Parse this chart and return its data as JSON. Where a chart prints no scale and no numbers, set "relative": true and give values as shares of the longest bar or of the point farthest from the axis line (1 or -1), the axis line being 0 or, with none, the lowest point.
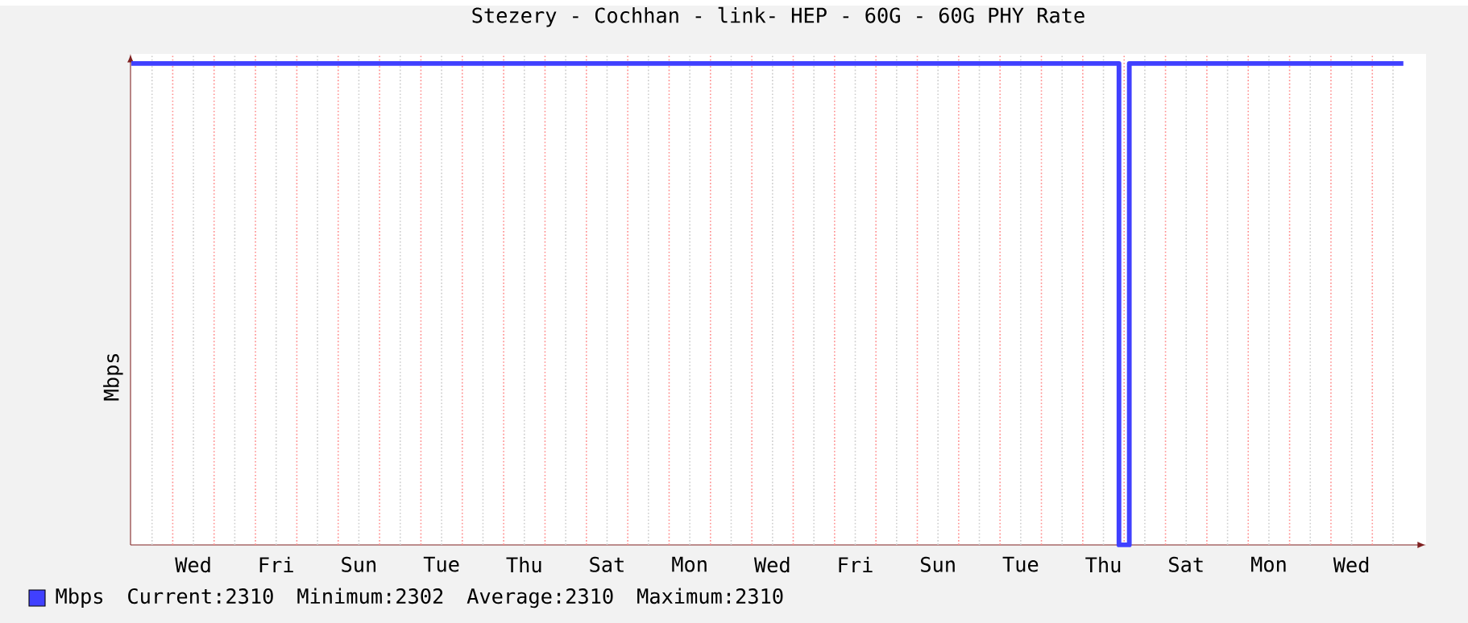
{
  "chart_data": {
    "type": "step",
    "title": "Stezery - Cochhan - link- HEP - 60G - 60G PHY Rate",
    "ylabel": "Mbps",
    "relative": true,
    "categories": [
      null,
      null,
      null,
      null,
      null,
      null,
      "Wed",
      null,
      null,
      null,
      null,
      null,
      null,
      null,
      "Fri",
      null,
      null,
      null,
      null,
      null,
      null,
      null,
      "Sun",
      null,
      null,
      null,
      null,
      null,
      null,
      null,
      "Tue",
      null,
      null,
      null,
      null,
      null,
      null,
      null,
      "Thu",
      null,
      null,
      null,
      null,
      null,
      null,
      null,
      "Sat",
      null,
      null,
      null,
      null,
      null,
      null,
      null,
      "Mon",
      null,
      null,
      null,
      null,
      null,
      null,
      null,
      "Wed",
      null,
      null,
      null,
      null,
      null,
      null,
      null,
      "Fri",
      null,
      null,
      null,
      null,
      null,
      null,
      null,
      "Sun",
      null,
      null,
      null,
      null,
      null,
      null,
      null,
      "Tue",
      null,
      null,
      null,
      null,
      null,
      null,
      null,
      "Thu",
      null,
      null,
      null,
      null,
      null,
      null,
      null,
      "Sat",
      null,
      null,
      null,
      null,
      null,
      null,
      null,
      "Mon",
      null,
      null,
      null,
      null,
      null,
      null,
      null,
      "Wed",
      null,
      null,
      null,
      null,
      null
    ],
    "series": [
      {
        "name": "Mbps",
        "color": "#4040ff",
        "values": [
          1,
          1,
          1,
          1,
          1,
          1,
          1,
          1,
          1,
          1,
          1,
          1,
          1,
          1,
          1,
          1,
          1,
          1,
          1,
          1,
          1,
          1,
          1,
          1,
          1,
          1,
          1,
          1,
          1,
          1,
          1,
          1,
          1,
          1,
          1,
          1,
          1,
          1,
          1,
          1,
          1,
          1,
          1,
          1,
          1,
          1,
          1,
          1,
          1,
          1,
          1,
          1,
          1,
          1,
          1,
          1,
          1,
          1,
          1,
          1,
          1,
          1,
          1,
          1,
          1,
          1,
          1,
          1,
          1,
          1,
          1,
          1,
          1,
          1,
          1,
          1,
          1,
          1,
          1,
          1,
          1,
          1,
          1,
          1,
          1,
          1,
          1,
          1,
          1,
          1,
          1,
          1,
          1,
          1,
          1,
          1,
          0,
          1,
          1,
          1,
          1,
          1,
          1,
          1,
          1,
          1,
          1,
          1,
          1,
          1,
          1,
          1,
          1,
          1,
          1,
          1,
          1,
          1,
          1,
          1,
          1,
          1,
          1,
          1
        ]
      }
    ],
    "grid": "x",
    "legend": "bottom",
    "line_style": "solid",
    "annotations": [
      "Current:2310",
      "Minimum:2302",
      "Average:2310",
      "Maximum:2310"
    ]
  }
}
